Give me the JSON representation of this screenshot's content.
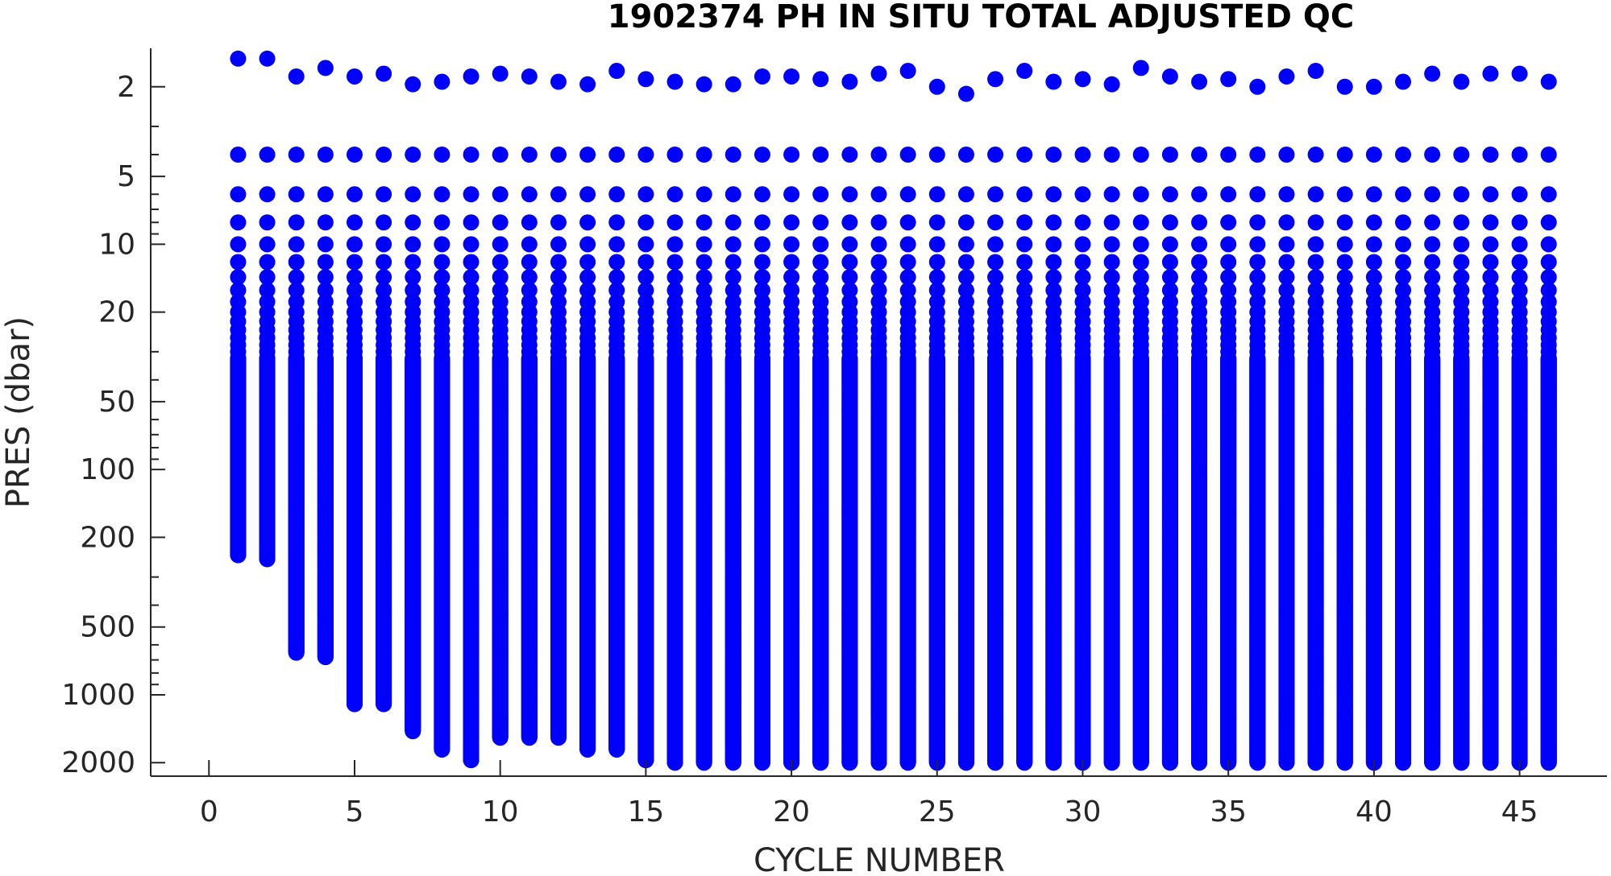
{
  "chart_data": {
    "type": "scatter",
    "title": "1902374  PH IN SITU TOTAL ADJUSTED QC",
    "xlabel": "CYCLE NUMBER",
    "ylabel": "PRES (dbar)",
    "xlim": [
      -2,
      48
    ],
    "ylim": [
      1.35,
      2150
    ],
    "y_scale": "log",
    "y_reversed": true,
    "grid": false,
    "marker_color": "#0000ff",
    "xticks": [
      0,
      5,
      10,
      15,
      20,
      25,
      30,
      35,
      40,
      45
    ],
    "yticks": [
      2,
      5,
      10,
      20,
      50,
      100,
      200,
      500,
      1000,
      2000
    ],
    "series": [
      {
        "x": [
          1,
          2,
          3,
          4,
          5,
          6,
          7,
          8,
          9,
          10,
          11,
          12,
          13,
          14,
          15,
          16,
          17,
          18,
          19,
          20,
          21,
          22,
          23,
          24,
          25,
          26,
          27,
          28,
          29,
          30,
          31,
          32,
          33,
          34,
          35,
          36,
          37,
          38,
          39,
          40,
          41,
          42,
          43,
          44,
          45,
          46
        ],
        "surface_pres": [
          1.5,
          1.5,
          1.8,
          1.65,
          1.8,
          1.75,
          1.95,
          1.9,
          1.8,
          1.75,
          1.8,
          1.9,
          1.95,
          1.7,
          1.85,
          1.9,
          1.95,
          1.95,
          1.8,
          1.8,
          1.85,
          1.9,
          1.75,
          1.7,
          2.0,
          2.15,
          1.85,
          1.7,
          1.9,
          1.85,
          1.95,
          1.65,
          1.8,
          1.9,
          1.85,
          2.0,
          1.8,
          1.7,
          2.0,
          2.0,
          1.9,
          1.75,
          1.9,
          1.75,
          1.75,
          1.9
        ],
        "max_pres": [
          240,
          250,
          650,
          680,
          1100,
          1100,
          1450,
          1750,
          1950,
          1550,
          1550,
          1550,
          1750,
          1750,
          1950,
          2000,
          2000,
          2000,
          2000,
          2000,
          2000,
          2000,
          2000,
          2000,
          2000,
          2000,
          2000,
          2000,
          2000,
          2000,
          2000,
          2000,
          2000,
          2000,
          2000,
          2000,
          2000,
          2000,
          2000,
          2000,
          2000,
          2000,
          2000,
          2000,
          2000,
          2000
        ],
        "upper_levels": [
          4,
          6,
          8,
          10,
          12,
          14,
          16,
          18,
          20,
          22,
          24,
          26,
          28,
          30
        ]
      }
    ]
  }
}
